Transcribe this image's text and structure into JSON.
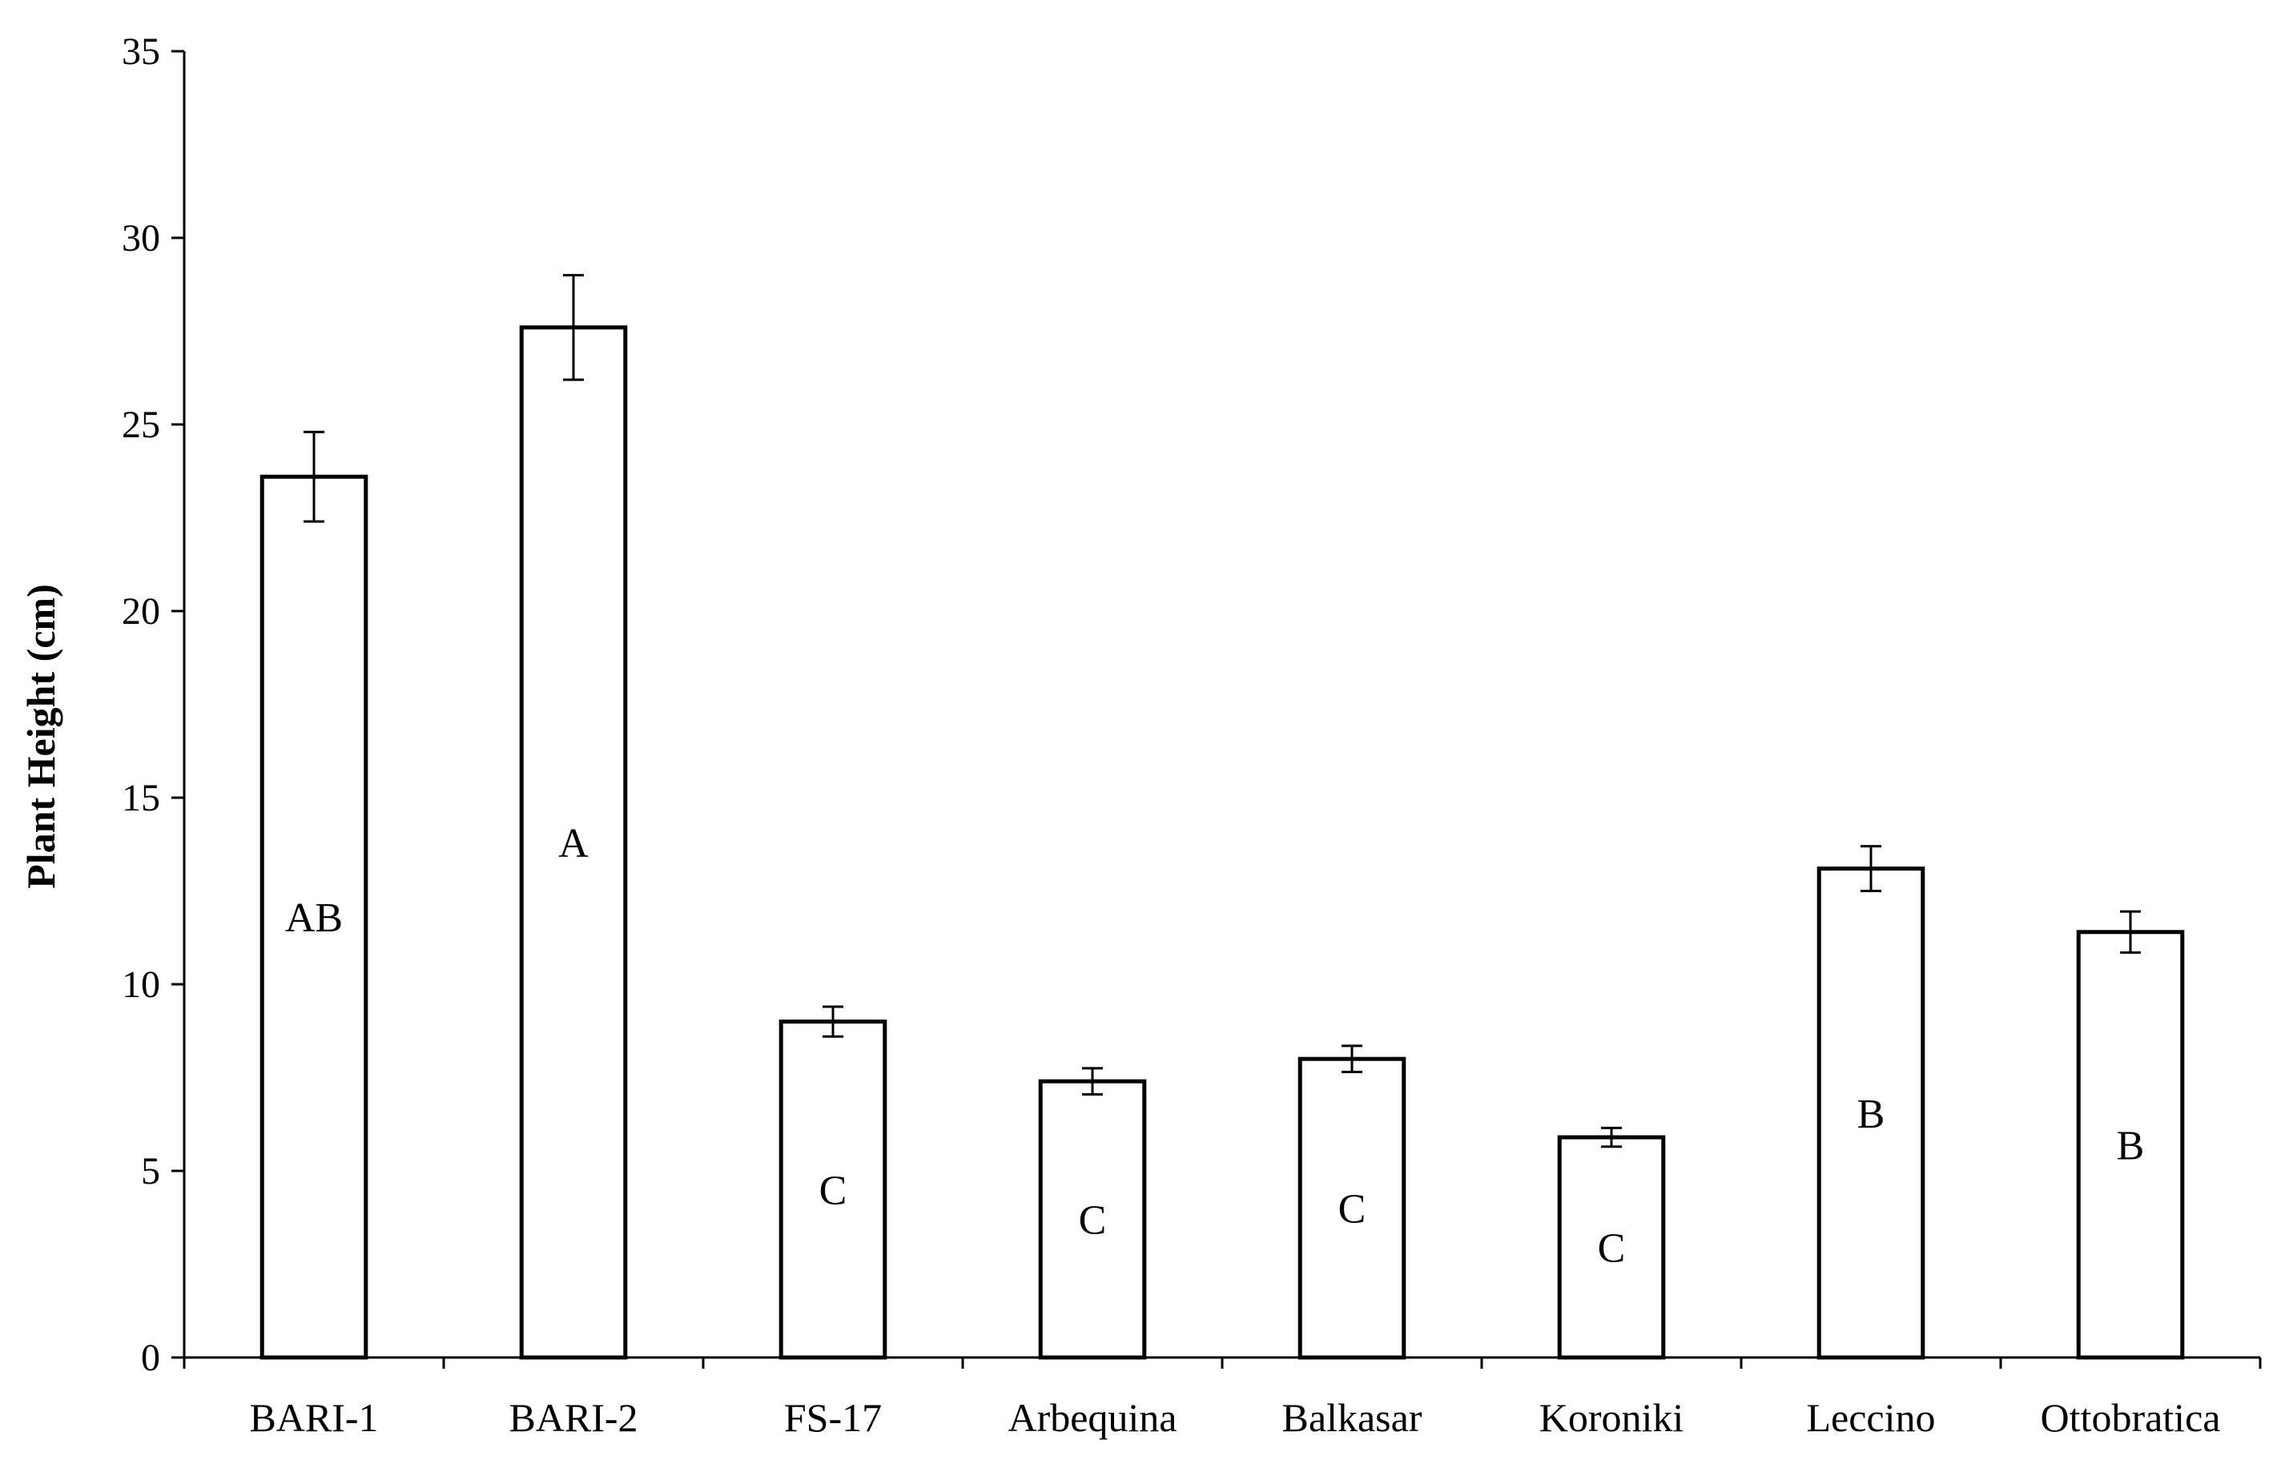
{
  "chart_data": {
    "type": "bar",
    "title": "",
    "xlabel": "",
    "ylabel": "Plant Height (cm)",
    "ylim": [
      0,
      35
    ],
    "yticks": [
      0,
      5,
      10,
      15,
      20,
      25,
      30,
      35
    ],
    "grid": false,
    "legend": "none",
    "bar_fill": "#ffffff",
    "bar_stroke": "#000000",
    "categories": [
      "BARI-1",
      "BARI-2",
      "FS-17",
      "Arbequina",
      "Balkasar",
      "Koroniki",
      "Leccino",
      "Ottobratica"
    ],
    "values": [
      23.6,
      27.6,
      9.0,
      7.4,
      8.0,
      5.9,
      13.1,
      11.4
    ],
    "error": [
      1.2,
      1.4,
      0.4,
      0.35,
      0.35,
      0.25,
      0.6,
      0.55
    ],
    "group_labels": [
      "AB",
      "A",
      "C",
      "C",
      "C",
      "C",
      "B",
      "B"
    ]
  }
}
